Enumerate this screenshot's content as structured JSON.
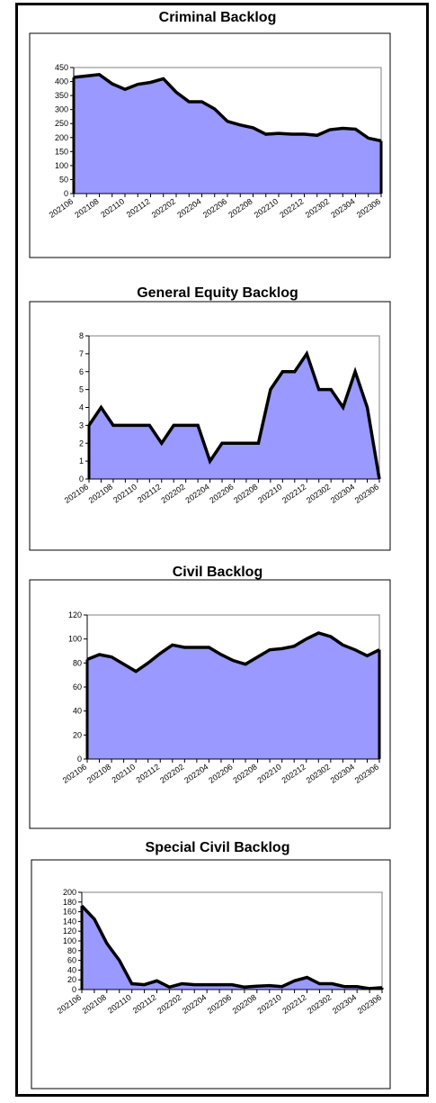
{
  "chart_data": [
    {
      "type": "area",
      "title": "Criminal Backlog",
      "xlabel": "",
      "ylabel": "",
      "ylim": [
        0,
        450
      ],
      "y_ticks": [
        0,
        50,
        100,
        150,
        200,
        250,
        300,
        350,
        400,
        450
      ],
      "x_tick_labels": [
        "202106",
        "202108",
        "202110",
        "202112",
        "202202",
        "202204",
        "202206",
        "202208",
        "202210",
        "202212",
        "202302",
        "202304",
        "202306"
      ],
      "x": [
        "202106",
        "202107",
        "202108",
        "202109",
        "202110",
        "202111",
        "202112",
        "202201",
        "202202",
        "202203",
        "202204",
        "202205",
        "202206",
        "202207",
        "202208",
        "202209",
        "202210",
        "202211",
        "202212",
        "202301",
        "202302",
        "202303",
        "202304",
        "202305",
        "202306"
      ],
      "values": [
        415,
        420,
        425,
        392,
        372,
        390,
        397,
        410,
        362,
        328,
        328,
        302,
        258,
        245,
        235,
        212,
        215,
        212,
        212,
        208,
        228,
        233,
        230,
        198,
        188
      ],
      "series_color": "#9999ff",
      "grid": false
    },
    {
      "type": "area",
      "title": "General Equity Backlog",
      "xlabel": "",
      "ylabel": "",
      "ylim": [
        0,
        8
      ],
      "y_ticks": [
        0,
        1,
        2,
        3,
        4,
        5,
        6,
        7,
        8
      ],
      "x_tick_labels": [
        "202106",
        "202108",
        "202110",
        "202112",
        "202202",
        "202204",
        "202206",
        "202208",
        "202210",
        "202212",
        "202302",
        "202304",
        "202306"
      ],
      "x": [
        "202106",
        "202107",
        "202108",
        "202109",
        "202110",
        "202111",
        "202112",
        "202201",
        "202202",
        "202203",
        "202204",
        "202205",
        "202206",
        "202207",
        "202208",
        "202209",
        "202210",
        "202211",
        "202212",
        "202301",
        "202302",
        "202303",
        "202304",
        "202305",
        "202306"
      ],
      "values": [
        3,
        4,
        3,
        3,
        3,
        3,
        2,
        3,
        3,
        3,
        1,
        2,
        2,
        2,
        2,
        5,
        6,
        6,
        7,
        5,
        5,
        4,
        6,
        4,
        0
      ],
      "series_color": "#9999ff",
      "grid": false
    },
    {
      "type": "area",
      "title": "Civil Backlog",
      "xlabel": "",
      "ylabel": "",
      "ylim": [
        0,
        120
      ],
      "y_ticks": [
        0,
        20,
        40,
        60,
        80,
        100,
        120
      ],
      "x_tick_labels": [
        "202106",
        "202108",
        "202110",
        "202112",
        "202202",
        "202204",
        "202206",
        "202208",
        "202210",
        "202212",
        "202302",
        "202304",
        "202306"
      ],
      "x": [
        "202106",
        "202107",
        "202108",
        "202109",
        "202110",
        "202111",
        "202112",
        "202201",
        "202202",
        "202203",
        "202204",
        "202205",
        "202206",
        "202207",
        "202208",
        "202209",
        "202210",
        "202211",
        "202212",
        "202301",
        "202302",
        "202303",
        "202304",
        "202305",
        "202306"
      ],
      "values": [
        83,
        87,
        85,
        79,
        73,
        80,
        88,
        95,
        93,
        93,
        93,
        87,
        82,
        79,
        85,
        91,
        92,
        94,
        100,
        105,
        102,
        95,
        91,
        86,
        91
      ],
      "series_color": "#9999ff",
      "grid": false
    },
    {
      "type": "area",
      "title": "Special Civil Backlog",
      "xlabel": "",
      "ylabel": "",
      "ylim": [
        0,
        200
      ],
      "y_ticks": [
        0,
        20,
        40,
        60,
        80,
        100,
        120,
        140,
        160,
        180,
        200
      ],
      "x_tick_labels": [
        "202106",
        "202108",
        "202110",
        "202112",
        "202202",
        "202204",
        "202206",
        "202208",
        "202210",
        "202212",
        "202302",
        "202304",
        "202306"
      ],
      "x": [
        "202106",
        "202107",
        "202108",
        "202109",
        "202110",
        "202111",
        "202112",
        "202201",
        "202202",
        "202203",
        "202204",
        "202205",
        "202206",
        "202207",
        "202208",
        "202209",
        "202210",
        "202211",
        "202212",
        "202301",
        "202302",
        "202303",
        "202304",
        "202305",
        "202306"
      ],
      "values": [
        172,
        145,
        95,
        60,
        12,
        10,
        18,
        5,
        12,
        10,
        10,
        10,
        10,
        5,
        7,
        8,
        6,
        18,
        25,
        12,
        12,
        6,
        6,
        2,
        4
      ],
      "series_color": "#9999ff",
      "grid": false
    }
  ]
}
